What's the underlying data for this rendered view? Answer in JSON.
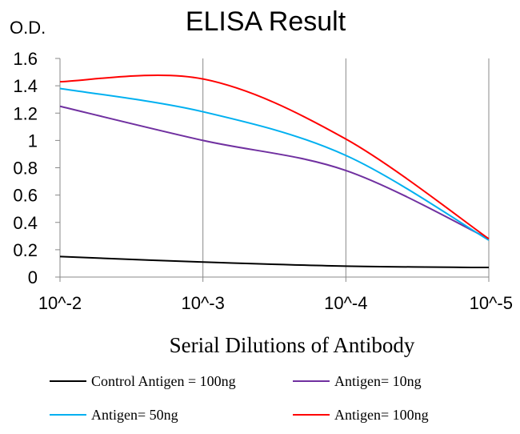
{
  "chart_data": {
    "type": "line",
    "title": "ELISA Result",
    "ylabel": "O.D.",
    "xlabel": "Serial Dilutions  of Antibody",
    "categories": [
      "10^-2",
      "10^-3",
      "10^-4",
      "10^-5"
    ],
    "x_scale": "log (serial dilution)",
    "ylim": [
      0,
      1.6
    ],
    "yticks": [
      "0",
      "0.2",
      "0.4",
      "0.6",
      "0.8",
      "1",
      "1.2",
      "1.4",
      "1.6"
    ],
    "grid": "vertical",
    "legend_position": "bottom",
    "series": [
      {
        "name": "Control Antigen = 100ng",
        "color": "#000000",
        "values": [
          0.15,
          0.11,
          0.08,
          0.07
        ]
      },
      {
        "name": "Antigen= 10ng",
        "color": "#7030a0",
        "values": [
          1.25,
          1.0,
          0.78,
          0.28
        ]
      },
      {
        "name": "Antigen= 50ng",
        "color": "#00b0f0",
        "values": [
          1.38,
          1.21,
          0.89,
          0.27
        ]
      },
      {
        "name": "Antigen= 100ng",
        "color": "#ff0000",
        "values": [
          1.43,
          1.45,
          1.01,
          0.28
        ]
      }
    ]
  }
}
